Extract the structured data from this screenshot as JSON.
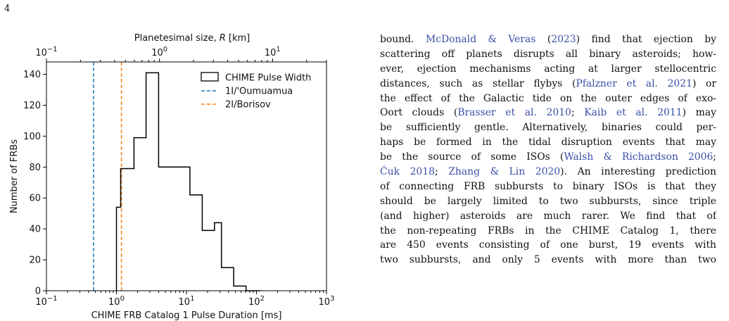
{
  "page": {
    "number": "4"
  },
  "figure": {
    "chart_data": {
      "type": "bar",
      "title": "",
      "xlabel": "CHIME FRB Catalog 1 Pulse Duration [ms]",
      "ylabel": "Number of FRBs",
      "top_xlabel": "Planetesimal size, R [km]",
      "xscale": "log",
      "xlim": [
        0.1,
        1000
      ],
      "ylim": [
        0,
        148
      ],
      "top_xlim": [
        0.1,
        30
      ],
      "x_ticks": [
        {
          "value": 0.1,
          "label": "10^-1"
        },
        {
          "value": 1,
          "label": "10^0"
        },
        {
          "value": 10,
          "label": "10^1"
        },
        {
          "value": 100,
          "label": "10^2"
        },
        {
          "value": 1000,
          "label": "10^3"
        }
      ],
      "top_ticks": [
        {
          "value": 0.1,
          "label": "10^-1"
        },
        {
          "value": 1,
          "label": "10^0"
        },
        {
          "value": 10,
          "label": "10^1"
        }
      ],
      "y_ticks": [
        0,
        20,
        40,
        60,
        80,
        100,
        120,
        140
      ],
      "grid": false,
      "legend_position": "top-right",
      "histogram": {
        "name": "CHIME Pulse Width",
        "color": "#000000",
        "bin_edges": [
          1.0,
          1.15,
          1.78,
          2.65,
          4.0,
          11.2,
          16.8,
          25.1,
          31.6,
          47.3,
          71.0,
          115.0
        ],
        "counts": [
          54,
          79,
          99,
          141,
          80,
          62,
          39,
          44,
          15,
          3,
          0
        ]
      },
      "vlines": [
        {
          "name": "1I/'Oumuamua",
          "x": 0.47,
          "color": "#1f77b4"
        },
        {
          "name": "2I/Borisov",
          "x": 1.18,
          "color": "#ff7f0e"
        }
      ]
    }
  },
  "body_text": {
    "lines": [
      [
        {
          "t": "bound. "
        },
        {
          "t": "McDonald & Veras",
          "c": 1
        },
        {
          "t": " ("
        },
        {
          "t": "2023",
          "c": 1
        },
        {
          "t": ") find that ejection by"
        }
      ],
      [
        {
          "t": "scattering off planets disrupts all binary asteroids; how-"
        }
      ],
      [
        {
          "t": "ever, ejection mechanisms acting at larger stellocentric"
        }
      ],
      [
        {
          "t": "distances, such as stellar flybys ("
        },
        {
          "t": "Pfalzner et al. 2021",
          "c": 1
        },
        {
          "t": ") or"
        }
      ],
      [
        {
          "t": "the effect of the Galactic tide on the outer edges of exo-"
        }
      ],
      [
        {
          "t": "Oort clouds ("
        },
        {
          "t": "Brasser et al. 2010",
          "c": 1
        },
        {
          "t": "; "
        },
        {
          "t": "Kaib et al. 2011",
          "c": 1
        },
        {
          "t": ") may"
        }
      ],
      [
        {
          "t": "be sufficiently gentle. Alternatively, binaries could per-"
        }
      ],
      [
        {
          "t": "haps be formed in the tidal disruption events that may"
        }
      ],
      [
        {
          "t": "be the source of some ISOs ("
        },
        {
          "t": "Walsh & Richardson 2006",
          "c": 1
        },
        {
          "t": ";"
        }
      ],
      [
        {
          "t": "Ćuk 2018",
          "c": 1
        },
        {
          "t": "; "
        },
        {
          "t": "Zhang & Lin 2020",
          "c": 1
        },
        {
          "t": "). An interesting prediction"
        }
      ],
      [
        {
          "t": "of connecting FRB subbursts to binary ISOs is that they"
        }
      ],
      [
        {
          "t": "should be largely limited to two subbursts, since triple"
        }
      ],
      [
        {
          "t": "(and higher) asteroids are much rarer. We find that of"
        }
      ],
      [
        {
          "t": "the non-repeating FRBs in the CHIME Catalog 1, there"
        }
      ],
      [
        {
          "t": "are 450 events consisting of one burst, 19 events with"
        }
      ],
      [
        {
          "t": "two subbursts, and only 5 events with more than two"
        }
      ]
    ]
  }
}
